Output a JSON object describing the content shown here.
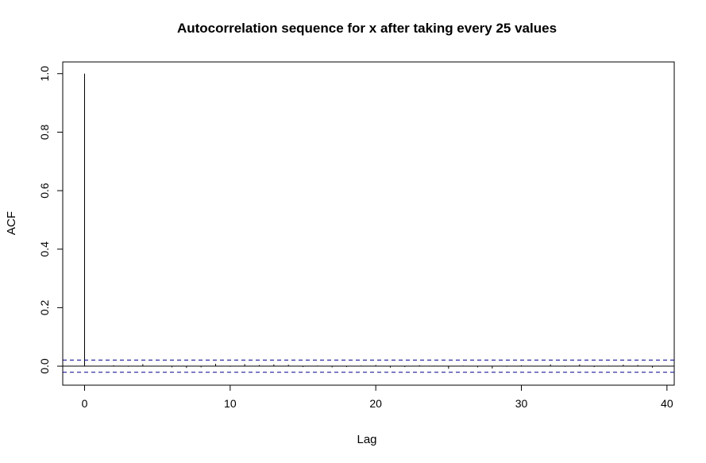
{
  "chart_data": {
    "type": "bar",
    "title": "Autocorrelation sequence for x after taking every 25 values",
    "xlabel": "Lag",
    "ylabel": "ACF",
    "xlim": [
      -1.5,
      40.5
    ],
    "ylim": [
      -0.065,
      1.04
    ],
    "x_ticks": [
      0,
      10,
      20,
      30,
      40
    ],
    "x_tick_labels": [
      "0",
      "10",
      "20",
      "30",
      "40"
    ],
    "y_ticks": [
      0,
      0.2,
      0.4,
      0.6,
      0.8,
      1
    ],
    "y_tick_labels": [
      "0.0",
      "0.2",
      "0.4",
      "0.6",
      "0.8",
      "1.0"
    ],
    "lags": [
      0,
      1,
      2,
      3,
      4,
      5,
      6,
      7,
      8,
      9,
      10,
      11,
      12,
      13,
      14,
      15,
      16,
      17,
      18,
      19,
      20,
      21,
      22,
      23,
      24,
      25,
      26,
      27,
      28,
      29,
      30,
      31,
      32,
      33,
      34,
      35,
      36,
      37,
      38,
      39,
      40
    ],
    "values": [
      1.0,
      -0.001,
      0.003,
      -0.002,
      0.007,
      0.001,
      -0.004,
      -0.006,
      -0.004,
      0.008,
      -0.002,
      0.007,
      0.004,
      0.006,
      0.005,
      -0.003,
      0.002,
      -0.004,
      -0.003,
      0.002,
      0.004,
      -0.005,
      -0.003,
      0.003,
      0.002,
      -0.009,
      0.002,
      -0.004,
      -0.008,
      -0.002,
      0.003,
      0.001,
      0.006,
      -0.002,
      0.006,
      -0.003,
      0.002,
      0.005,
      0.004,
      -0.005,
      0.001
    ],
    "confidence_bound": 0.021,
    "zero_line": true,
    "grid": false,
    "colors": {
      "bars": "#000000",
      "confidence_lines": "#00008b",
      "zero_line": "#000000",
      "frame": "#000000"
    }
  }
}
